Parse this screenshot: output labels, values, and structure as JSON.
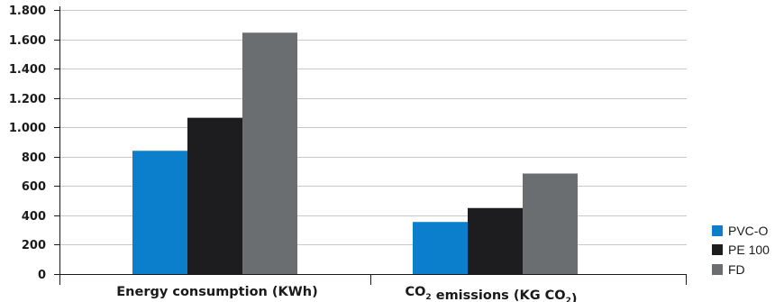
{
  "chart_data": {
    "type": "bar",
    "categories": [
      {
        "main": "Energy consumption (KWh)",
        "parts": [
          {
            "text": "Energy consumption (KWh)",
            "sub": false
          }
        ]
      },
      {
        "main": "CO2 emissions (KG CO2)",
        "parts": [
          {
            "text": "CO",
            "sub": false
          },
          {
            "text": "2",
            "sub": true
          },
          {
            "text": " emissions (KG CO",
            "sub": false
          },
          {
            "text": "2",
            "sub": true
          },
          {
            "text": ")",
            "sub": false
          }
        ]
      }
    ],
    "series": [
      {
        "name": "PVC-O",
        "values": [
          840,
          355
        ],
        "color": "#0b7fcb"
      },
      {
        "name": "PE 100",
        "values": [
          1065,
          450
        ],
        "color": "#1d1d1f"
      },
      {
        "name": "FD",
        "values": [
          1645,
          685
        ],
        "color": "#6b6e71"
      }
    ],
    "y_ticks": [
      {
        "value": 0,
        "label": "0"
      },
      {
        "value": 200,
        "label": "200"
      },
      {
        "value": 400,
        "label": "400"
      },
      {
        "value": 600,
        "label": "600"
      },
      {
        "value": 800,
        "label": "800"
      },
      {
        "value": 1000,
        "label": "1.000"
      },
      {
        "value": 1200,
        "label": "1.200"
      },
      {
        "value": 1400,
        "label": "1.400"
      },
      {
        "value": 1600,
        "label": "1.600"
      },
      {
        "value": 1800,
        "label": "1.800"
      }
    ],
    "ylim": [
      0,
      1800
    ],
    "grid": true,
    "legend_position": "bottom-right"
  }
}
